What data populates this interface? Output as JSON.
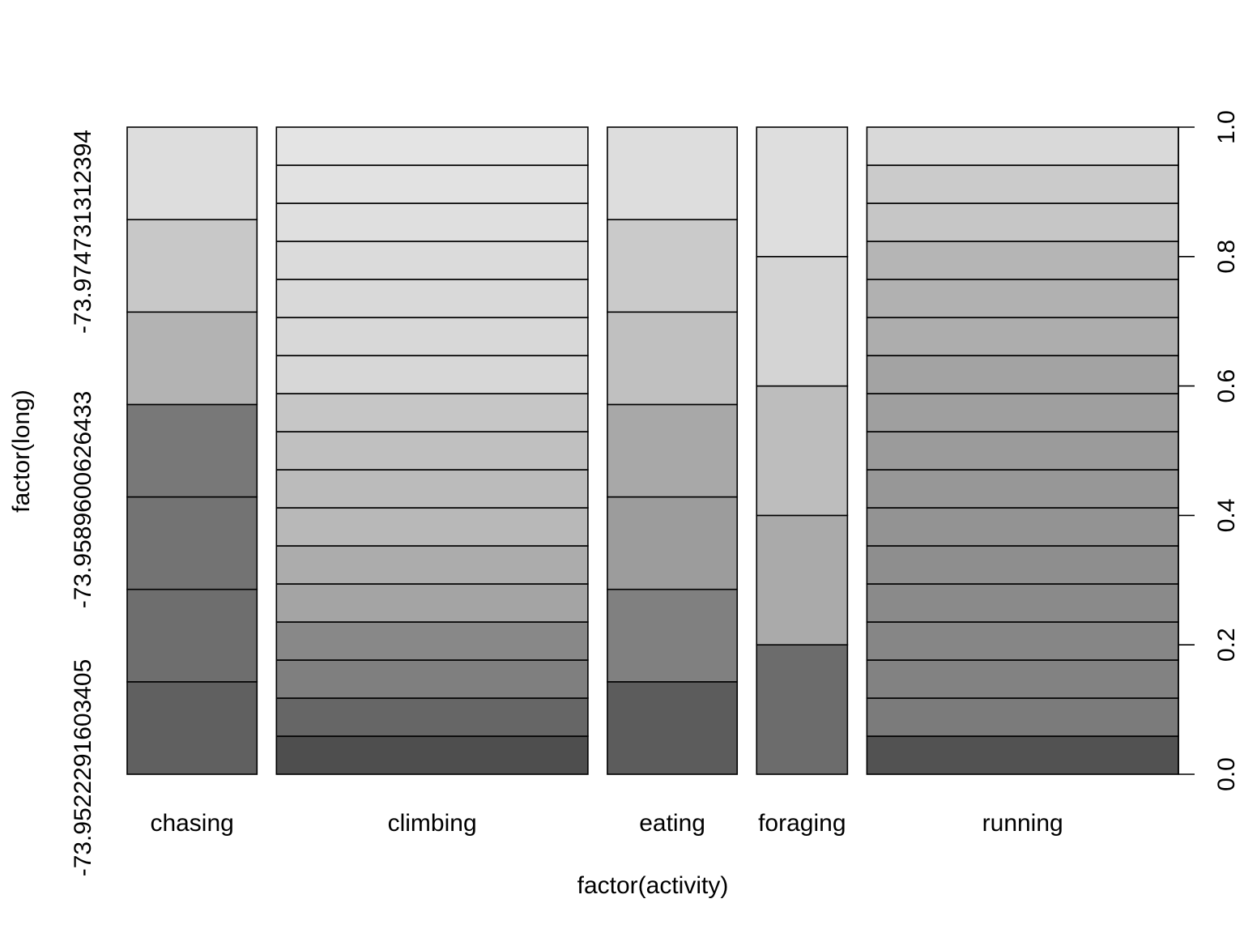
{
  "chart_data": {
    "type": "spineplot",
    "xlabel": "factor(activity)",
    "ylabel": "factor(long)",
    "left_axis_labels": [
      "-73.9522291603405",
      "-73.9589600626433",
      "-73.974731312394"
    ],
    "right_axis": {
      "ylim": [
        0,
        1
      ],
      "ticks": [
        "0.0",
        "0.2",
        "0.4",
        "0.6",
        "0.8",
        "1.0"
      ]
    },
    "bars": [
      {
        "category": "chasing",
        "width_share": 0.1235,
        "segments": 7,
        "fills": [
          "#606060",
          "#6e6e6e",
          "#737373",
          "#787878",
          "#b3b3b3",
          "#c8c8c8",
          "#dddddd"
        ]
      },
      {
        "category": "climbing",
        "width_share": 0.2963,
        "segments": 17,
        "fills": [
          "#4e4e4e",
          "#666666",
          "#7f7f7f",
          "#888888",
          "#a4a4a4",
          "#acacac",
          "#b8b8b8",
          "#bbbbbb",
          "#c0c0c0",
          "#c6c6c6",
          "#d7d7d7",
          "#d8d8d8",
          "#d9d9d9",
          "#dbdbdb",
          "#dfdfdf",
          "#e2e2e2",
          "#e4e4e4"
        ]
      },
      {
        "category": "eating",
        "width_share": 0.1235,
        "segments": 7,
        "fills": [
          "#5c5c5c",
          "#808080",
          "#9c9c9c",
          "#a8a8a8",
          "#c0c0c0",
          "#cacaca",
          "#dddddd"
        ]
      },
      {
        "category": "foraging",
        "width_share": 0.0864,
        "segments": 5,
        "fills": [
          "#6c6c6c",
          "#aaaaaa",
          "#bdbdbd",
          "#d4d4d4",
          "#dedede"
        ]
      },
      {
        "category": "running",
        "width_share": 0.2963,
        "segments": 17,
        "fills": [
          "#525252",
          "#7b7b7b",
          "#828282",
          "#868686",
          "#8a8a8a",
          "#8e8e8e",
          "#939393",
          "#979797",
          "#9b9b9b",
          "#9f9f9f",
          "#a3a3a3",
          "#adadad",
          "#b1b1b1",
          "#b5b5b5",
          "#c6c6c6",
          "#cbcbcb",
          "#d9d9d9"
        ]
      }
    ]
  }
}
